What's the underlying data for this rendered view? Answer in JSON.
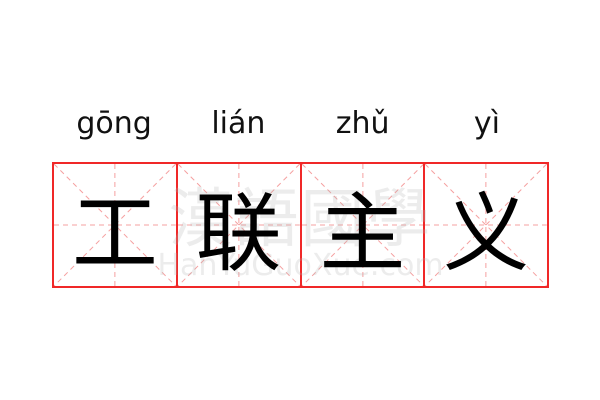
{
  "words": [
    {
      "pinyin": "gōng",
      "char": "工"
    },
    {
      "pinyin": "lián",
      "char": "联"
    },
    {
      "pinyin": "zhǔ",
      "char": "主"
    },
    {
      "pinyin": "yì",
      "char": "义"
    }
  ],
  "watermark": {
    "chinese": "漢語國學",
    "latin": "HanYuGuoXue.com"
  },
  "colors": {
    "grid_border": "#f02828",
    "grid_guides": "#f5a0a0"
  }
}
